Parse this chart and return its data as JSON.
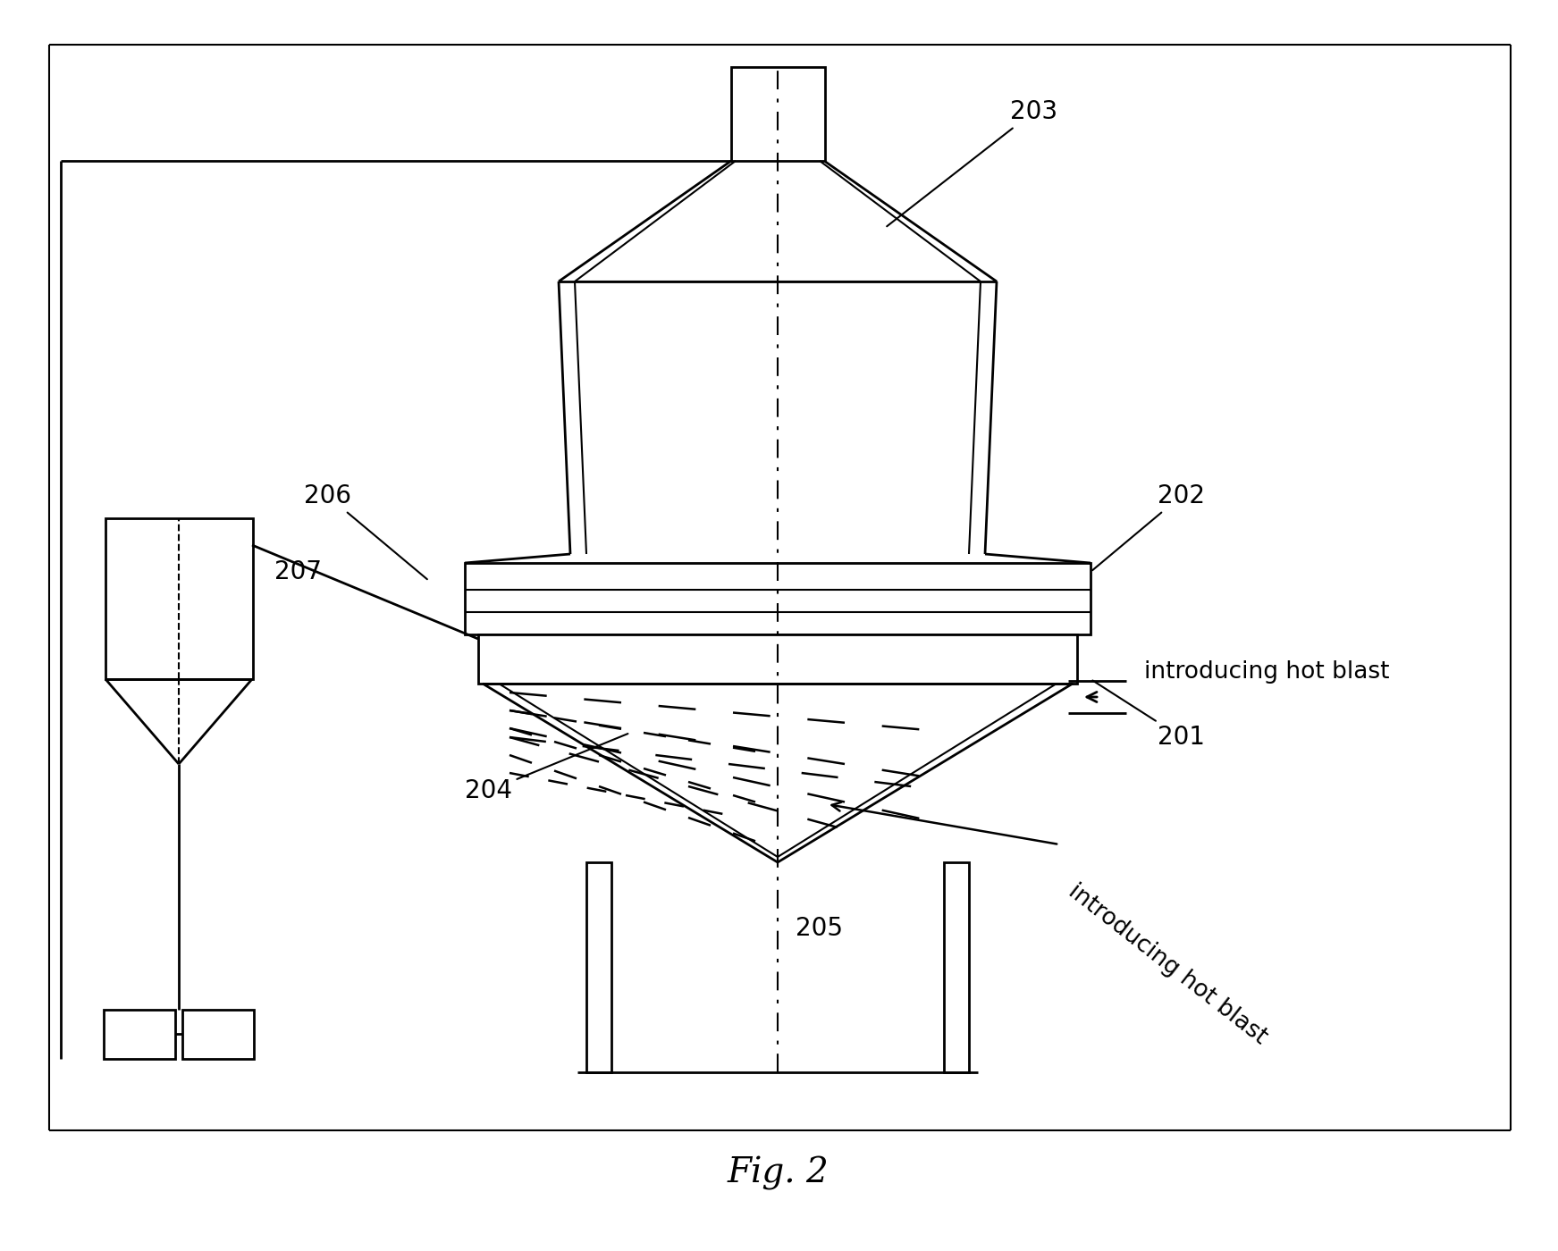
{
  "fig_label": "Fig. 2",
  "background_color": "#ffffff",
  "line_color": "#000000",
  "lw": 2.0,
  "lw_thin": 1.5,
  "lw_border": 1.5
}
